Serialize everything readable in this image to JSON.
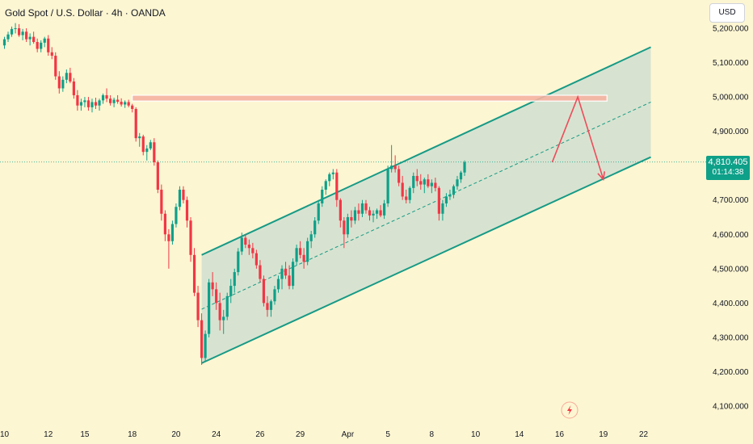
{
  "header": {
    "title": "Gold Spot / U.S. Dollar · 4h · OANDA",
    "currency_button": "USD"
  },
  "price_badge": {
    "price": "4,810.405",
    "countdown": "01:14:38"
  },
  "colors": {
    "background": "#fdf6d2",
    "bull": "#0ea089",
    "bear": "#f23645",
    "channel_line": "#169a86",
    "channel_fill": "#c9dccf",
    "resistance_zone": "#f5b3a1",
    "projection": "#ef4a5a"
  },
  "icons": {
    "flash": "lightning-bolt-icon"
  },
  "chart_data": {
    "type": "candlestick",
    "title": "Gold Spot / U.S. Dollar · 4h · OANDA",
    "ylim": [
      4070,
      5240
    ],
    "y_ticks": [
      {
        "value": 5200,
        "label": "5,200.000"
      },
      {
        "value": 5100,
        "label": "5,100.000"
      },
      {
        "value": 5000,
        "label": "5,000.000"
      },
      {
        "value": 4900,
        "label": "4,900.000"
      },
      {
        "value": 4800,
        "label": "4,800.000"
      },
      {
        "value": 4700,
        "label": "4,700.000"
      },
      {
        "value": 4600,
        "label": "4,600.000"
      },
      {
        "value": 4500,
        "label": "4,500.000"
      },
      {
        "value": 4400,
        "label": "4,400.000"
      },
      {
        "value": 4300,
        "label": "4,300.000"
      },
      {
        "value": 4200,
        "label": "4,200.000"
      },
      {
        "value": 4100,
        "label": "4,100.000"
      }
    ],
    "x_ticks": [
      {
        "index": 0,
        "label": "10"
      },
      {
        "index": 12,
        "label": "12"
      },
      {
        "index": 22,
        "label": "15"
      },
      {
        "index": 35,
        "label": "18"
      },
      {
        "index": 47,
        "label": "20"
      },
      {
        "index": 58,
        "label": "24"
      },
      {
        "index": 70,
        "label": "26"
      },
      {
        "index": 81,
        "label": "29"
      },
      {
        "index": 94,
        "label": "Apr"
      },
      {
        "index": 105,
        "label": "5"
      },
      {
        "index": 117,
        "label": "8"
      },
      {
        "index": 129,
        "label": "10"
      },
      {
        "index": 141,
        "label": "14"
      },
      {
        "index": 152,
        "label": "16"
      },
      {
        "index": 164,
        "label": "19"
      },
      {
        "index": 175,
        "label": "22"
      }
    ],
    "current_price": 4810.405,
    "countdown": "01:14:38",
    "ohlc": [
      [
        5150,
        5175,
        5140,
        5168
      ],
      [
        5168,
        5190,
        5160,
        5182
      ],
      [
        5182,
        5205,
        5175,
        5198
      ],
      [
        5198,
        5215,
        5185,
        5200
      ],
      [
        5200,
        5212,
        5175,
        5180
      ],
      [
        5180,
        5198,
        5165,
        5190
      ],
      [
        5190,
        5200,
        5160,
        5168
      ],
      [
        5168,
        5185,
        5150,
        5175
      ],
      [
        5175,
        5190,
        5155,
        5160
      ],
      [
        5160,
        5170,
        5130,
        5140
      ],
      [
        5140,
        5165,
        5130,
        5158
      ],
      [
        5158,
        5175,
        5145,
        5170
      ],
      [
        5170,
        5180,
        5120,
        5130
      ],
      [
        5130,
        5145,
        5110,
        5120
      ],
      [
        5120,
        5130,
        5050,
        5060
      ],
      [
        5060,
        5075,
        5010,
        5025
      ],
      [
        5025,
        5060,
        5015,
        5050
      ],
      [
        5050,
        5080,
        5040,
        5070
      ],
      [
        5070,
        5085,
        5040,
        5045
      ],
      [
        5045,
        5055,
        4995,
        5005
      ],
      [
        5005,
        5020,
        4960,
        4975
      ],
      [
        4975,
        4995,
        4960,
        4985
      ],
      [
        4985,
        5000,
        4970,
        4990
      ],
      [
        4990,
        5000,
        4960,
        4970
      ],
      [
        4970,
        4995,
        4955,
        4985
      ],
      [
        4985,
        4998,
        4965,
        4975
      ],
      [
        4975,
        4995,
        4960,
        4990
      ],
      [
        4990,
        5010,
        4980,
        5005
      ],
      [
        5005,
        5025,
        4985,
        4995
      ],
      [
        4995,
        5005,
        4975,
        4982
      ],
      [
        4982,
        4998,
        4970,
        4992
      ],
      [
        4992,
        5005,
        4980,
        4986
      ],
      [
        4986,
        4996,
        4972,
        4978
      ],
      [
        4978,
        4990,
        4968,
        4985
      ],
      [
        4985,
        4992,
        4970,
        4975
      ],
      [
        4975,
        4980,
        4955,
        4965
      ],
      [
        4965,
        4970,
        4870,
        4880
      ],
      [
        4880,
        4895,
        4855,
        4885
      ],
      [
        4885,
        4890,
        4830,
        4840
      ],
      [
        4840,
        4860,
        4815,
        4850
      ],
      [
        4850,
        4875,
        4845,
        4868
      ],
      [
        4868,
        4880,
        4800,
        4810
      ],
      [
        4810,
        4815,
        4720,
        4730
      ],
      [
        4730,
        4745,
        4640,
        4660
      ],
      [
        4660,
        4670,
        4580,
        4600
      ],
      [
        4600,
        4615,
        4500,
        4580
      ],
      [
        4580,
        4640,
        4570,
        4630
      ],
      [
        4630,
        4690,
        4620,
        4680
      ],
      [
        4680,
        4740,
        4670,
        4730
      ],
      [
        4730,
        4740,
        4690,
        4700
      ],
      [
        4700,
        4710,
        4620,
        4640
      ],
      [
        4640,
        4650,
        4520,
        4540
      ],
      [
        4540,
        4560,
        4420,
        4430
      ],
      [
        4430,
        4450,
        4330,
        4350
      ],
      [
        4350,
        4370,
        4220,
        4240
      ],
      [
        4240,
        4320,
        4230,
        4310
      ],
      [
        4310,
        4470,
        4300,
        4460
      ],
      [
        4460,
        4490,
        4420,
        4440
      ],
      [
        4440,
        4460,
        4380,
        4400
      ],
      [
        4400,
        4430,
        4320,
        4350
      ],
      [
        4350,
        4380,
        4310,
        4360
      ],
      [
        4360,
        4430,
        4350,
        4420
      ],
      [
        4420,
        4470,
        4400,
        4450
      ],
      [
        4450,
        4500,
        4430,
        4490
      ],
      [
        4490,
        4560,
        4480,
        4550
      ],
      [
        4550,
        4605,
        4540,
        4590
      ],
      [
        4590,
        4600,
        4560,
        4570
      ],
      [
        4570,
        4585,
        4540,
        4560
      ],
      [
        4560,
        4575,
        4530,
        4545
      ],
      [
        4545,
        4555,
        4500,
        4510
      ],
      [
        4510,
        4525,
        4460,
        4470
      ],
      [
        4470,
        4480,
        4390,
        4400
      ],
      [
        4400,
        4420,
        4360,
        4380
      ],
      [
        4380,
        4410,
        4360,
        4405
      ],
      [
        4405,
        4450,
        4395,
        4440
      ],
      [
        4440,
        4480,
        4430,
        4470
      ],
      [
        4470,
        4510,
        4440,
        4500
      ],
      [
        4500,
        4520,
        4470,
        4480
      ],
      [
        4480,
        4510,
        4440,
        4450
      ],
      [
        4450,
        4530,
        4440,
        4520
      ],
      [
        4520,
        4570,
        4510,
        4560
      ],
      [
        4560,
        4580,
        4530,
        4540
      ],
      [
        4540,
        4560,
        4500,
        4520
      ],
      [
        4520,
        4590,
        4510,
        4580
      ],
      [
        4580,
        4610,
        4560,
        4600
      ],
      [
        4600,
        4650,
        4590,
        4640
      ],
      [
        4640,
        4700,
        4630,
        4690
      ],
      [
        4690,
        4740,
        4680,
        4730
      ],
      [
        4730,
        4760,
        4715,
        4755
      ],
      [
        4755,
        4780,
        4740,
        4775
      ],
      [
        4775,
        4790,
        4760,
        4780
      ],
      [
        4780,
        4790,
        4680,
        4700
      ],
      [
        4700,
        4705,
        4620,
        4640
      ],
      [
        4640,
        4650,
        4560,
        4600
      ],
      [
        4600,
        4660,
        4590,
        4650
      ],
      [
        4650,
        4670,
        4620,
        4640
      ],
      [
        4640,
        4680,
        4630,
        4670
      ],
      [
        4670,
        4690,
        4640,
        4660
      ],
      [
        4660,
        4700,
        4650,
        4690
      ],
      [
        4690,
        4700,
        4660,
        4670
      ],
      [
        4670,
        4680,
        4640,
        4655
      ],
      [
        4655,
        4670,
        4635,
        4660
      ],
      [
        4660,
        4675,
        4645,
        4670
      ],
      [
        4670,
        4685,
        4650,
        4655
      ],
      [
        4655,
        4700,
        4645,
        4690
      ],
      [
        4690,
        4800,
        4680,
        4790
      ],
      [
        4790,
        4860,
        4780,
        4800
      ],
      [
        4800,
        4830,
        4780,
        4790
      ],
      [
        4790,
        4800,
        4740,
        4750
      ],
      [
        4750,
        4770,
        4700,
        4710
      ],
      [
        4710,
        4730,
        4690,
        4700
      ],
      [
        4700,
        4740,
        4690,
        4735
      ],
      [
        4735,
        4780,
        4720,
        4770
      ],
      [
        4770,
        4790,
        4740,
        4755
      ],
      [
        4755,
        4775,
        4730,
        4745
      ],
      [
        4745,
        4765,
        4720,
        4760
      ],
      [
        4760,
        4775,
        4735,
        4740
      ],
      [
        4740,
        4760,
        4720,
        4750
      ],
      [
        4750,
        4765,
        4725,
        4735
      ],
      [
        4735,
        4740,
        4640,
        4660
      ],
      [
        4660,
        4700,
        4640,
        4690
      ],
      [
        4690,
        4720,
        4680,
        4710
      ],
      [
        4710,
        4730,
        4700,
        4715
      ],
      [
        4715,
        4745,
        4705,
        4740
      ],
      [
        4740,
        4770,
        4730,
        4760
      ],
      [
        4760,
        4785,
        4750,
        4780
      ],
      [
        4780,
        4815,
        4770,
        4810
      ]
    ],
    "channel": {
      "upper": [
        {
          "i": 54,
          "v": 4540
        },
        {
          "i": 177,
          "v": 5145
        }
      ],
      "lower": [
        {
          "i": 54,
          "v": 4225
        },
        {
          "i": 177,
          "v": 4825
        }
      ],
      "median": [
        {
          "i": 54,
          "v": 4382
        },
        {
          "i": 177,
          "v": 4985
        }
      ]
    },
    "resistance_zone": {
      "i_start": 35,
      "i_end": 165,
      "v_top": 5005,
      "v_bottom": 4988
    },
    "projection": [
      {
        "i": 150,
        "v": 4810
      },
      {
        "i": 157,
        "v": 5000
      },
      {
        "i": 164,
        "v": 4760
      }
    ]
  }
}
